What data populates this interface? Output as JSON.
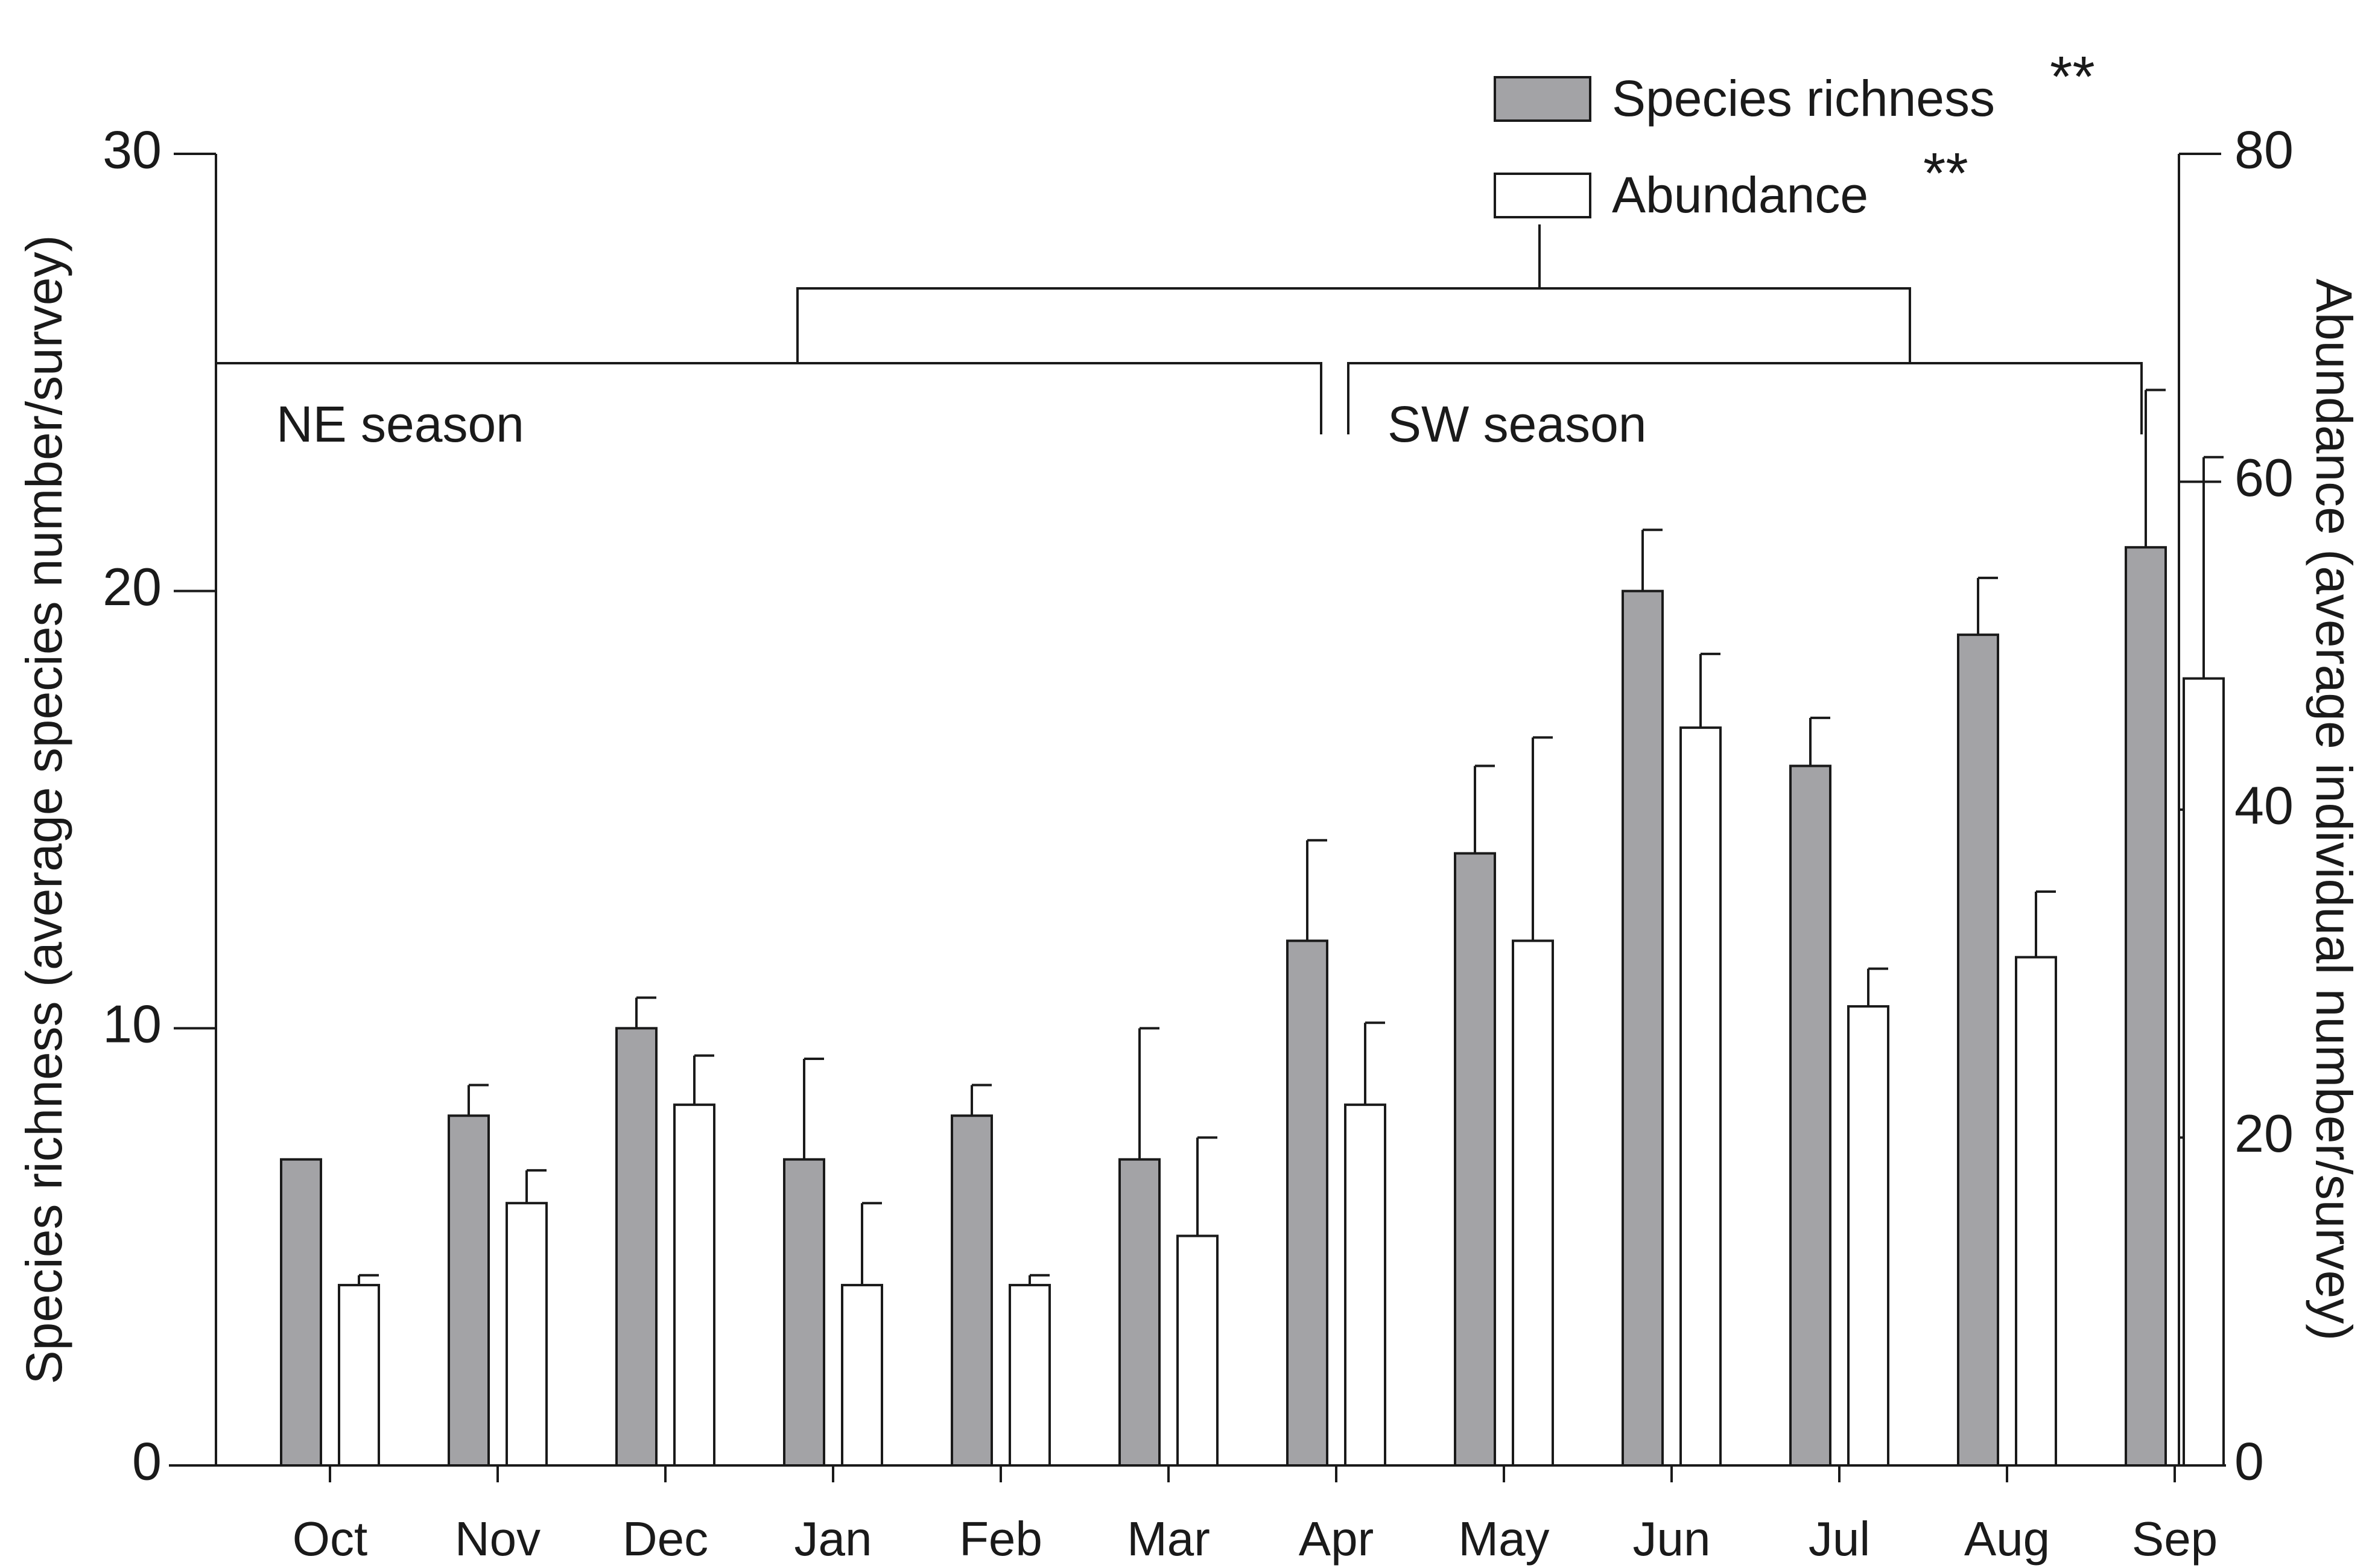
{
  "chart_data": {
    "type": "bar",
    "categories": [
      "Oct",
      "Nov",
      "Dec",
      "Jan",
      "Feb",
      "Mar",
      "Apr",
      "May",
      "Jun",
      "Jul",
      "Aug",
      "Sep"
    ],
    "series": [
      {
        "name": "Species richness",
        "significance": "**",
        "axis": "left",
        "color": "#a3a3a6",
        "values": [
          7,
          8,
          10,
          7,
          8,
          7,
          12,
          14,
          20,
          16,
          19,
          21
        ],
        "error": [
          0,
          0.7,
          0.7,
          2.3,
          0.7,
          3.0,
          2.3,
          2.0,
          1.4,
          1.1,
          1.3,
          3.6
        ]
      },
      {
        "name": "Abundance",
        "significance": "**",
        "axis": "right",
        "color": "#ffffff",
        "values": [
          11,
          16,
          22,
          11,
          11,
          14,
          22,
          32,
          45,
          28,
          31,
          48
        ],
        "error": [
          0.6,
          2.0,
          3.0,
          5.0,
          0.6,
          6.0,
          5.0,
          12.4,
          4.5,
          2.3,
          4.0,
          13.5
        ]
      }
    ],
    "left_axis": {
      "label": "Species richness (average species number/survey)",
      "ylim": [
        0,
        30
      ],
      "ticks": [
        0,
        10,
        20,
        30
      ]
    },
    "right_axis": {
      "label": "Abundance (average individual number/survey)",
      "ylim": [
        0,
        80
      ],
      "ticks": [
        0,
        20,
        40,
        60,
        80
      ]
    },
    "seasons": [
      {
        "label": "NE season",
        "from": "Oct",
        "to": "Apr"
      },
      {
        "label": "SW season",
        "from": "May",
        "to": "Sep"
      }
    ],
    "legend_position": "top-right"
  },
  "colors": {
    "axis": "#1a1a1a",
    "richness_fill": "#a3a3a6",
    "abundance_fill": "#ffffff"
  }
}
